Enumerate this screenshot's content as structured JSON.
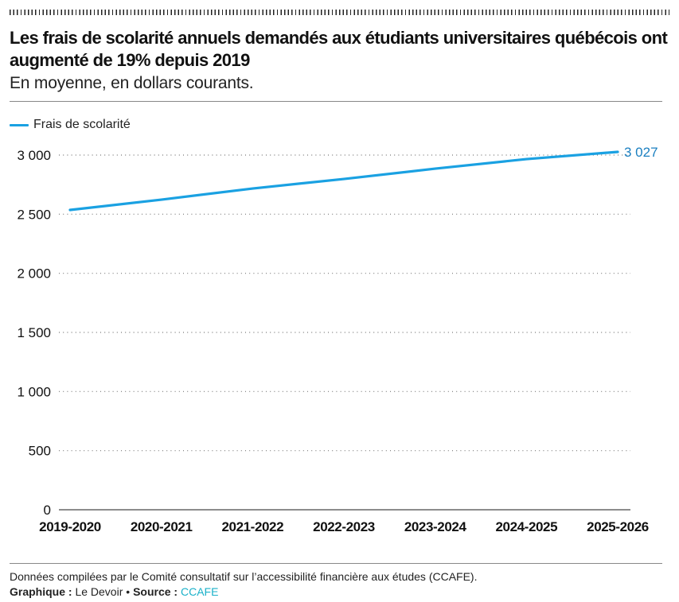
{
  "header": {
    "title": "Les frais de scolarité annuels demandés aux étudiants universitaires québécois ont augmenté de 19% depuis 2019",
    "subtitle": "En moyenne, en dollars courants."
  },
  "legend": {
    "label": "Frais de scolarité",
    "color": "#1aa1e2"
  },
  "footer": {
    "note": "Données compilées par le Comité consultatif sur l’accessibilité financière aux études (CCAFE).",
    "graphic_label": "Graphique :",
    "graphic_value": "Le Devoir",
    "separator": "•",
    "source_label": "Source :",
    "source_value": "CCAFE"
  },
  "chart_data": {
    "type": "line",
    "title": "Les frais de scolarité annuels demandés aux étudiants universitaires québécois ont augmenté de 19% depuis 2019",
    "subtitle": "En moyenne, en dollars courants.",
    "xlabel": "",
    "ylabel": "",
    "categories": [
      "2019-2020",
      "2020-2021",
      "2021-2022",
      "2022-2023",
      "2023-2024",
      "2024-2025",
      "2025-2026"
    ],
    "series": [
      {
        "name": "Frais de scolarité",
        "color": "#1aa1e2",
        "values": [
          2536,
          2623,
          2717,
          2798,
          2885,
          2966,
          3027
        ]
      }
    ],
    "end_label": "3 027",
    "ylim": [
      0,
      3000
    ],
    "yticks": [
      0,
      500,
      1000,
      1500,
      2000,
      2500,
      3000
    ],
    "ytick_labels": [
      "0",
      "500",
      "1 000",
      "1 500",
      "2 000",
      "2 500",
      "3 000"
    ],
    "grid": true,
    "legend_position": "top-left"
  }
}
